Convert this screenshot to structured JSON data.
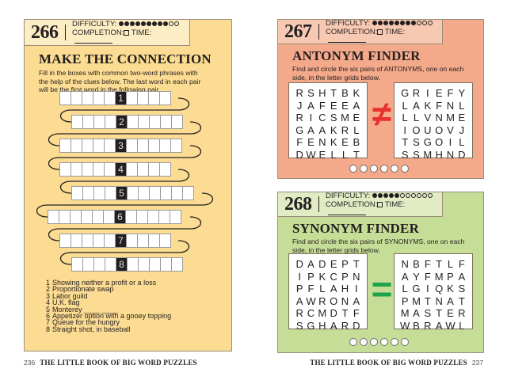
{
  "left_page": {
    "puzzle_number": "266",
    "difficulty_label": "DIFFICULTY:",
    "difficulty": 9,
    "difficulty_max": 11,
    "completion_label": "COMPLETION:",
    "time_label": "TIME:",
    "title": "MAKE THE CONNECTION",
    "instructions": "Fill in the boxes with common two-word phrases with the help of the clues below. The last word in each pair will be the first word in the following pair.",
    "rows": [
      {
        "label": "1",
        "before": 5,
        "after": 4
      },
      {
        "label": "2",
        "before": 4,
        "after": 5
      },
      {
        "label": "3",
        "before": 5,
        "after": 5
      },
      {
        "label": "4",
        "before": 5,
        "after": 4
      },
      {
        "label": "5",
        "before": 4,
        "after": 6
      },
      {
        "label": "6",
        "before": 6,
        "after": 5
      },
      {
        "label": "7",
        "before": 5,
        "after": 4
      },
      {
        "label": "8",
        "before": 4,
        "after": 5
      }
    ],
    "clues": [
      {
        "n": "1",
        "text": "Showing neither a profit or a loss"
      },
      {
        "n": "2",
        "text": "Proportionate swap"
      },
      {
        "n": "3",
        "text": "Labor guild"
      },
      {
        "n": "4",
        "text": "U.K. flag"
      },
      {
        "n": "5",
        "text": "Monterey ____ ____"
      },
      {
        "n": "6",
        "text": "Appetizer option with a gooey topping"
      },
      {
        "n": "7",
        "text": "Queue for the hungry"
      },
      {
        "n": "8",
        "text": "Straight shot, in baseball"
      }
    ],
    "page_number": "236",
    "book_title": "THE LITTLE BOOK OF BIG WORD PUZZLES",
    "color": "#fcdc92"
  },
  "antonym": {
    "puzzle_number": "267",
    "difficulty_label": "DIFFICULTY:",
    "difficulty": 8,
    "difficulty_max": 11,
    "completion_label": "COMPLETION:",
    "time_label": "TIME:",
    "title": "ANTONYM FINDER",
    "instructions": "Find and circle the six pairs of ANTONYMS, one on each side, in the letter grids below.",
    "left_grid": [
      "RSHTBK",
      "JAFEEA",
      "RICSME",
      "GAAKRL",
      "FENKEB",
      "DWELLT"
    ],
    "right_grid": [
      "GRIEFY",
      "LAKFNL",
      "LLVNME",
      "IOUOVJ",
      "TSGOIL",
      "SSMHND"
    ],
    "symbol": "≠",
    "answer_circles": 6,
    "color": "#f4a98a",
    "symbol_color": "#e8312e"
  },
  "synonym": {
    "puzzle_number": "268",
    "difficulty_label": "DIFFICULTY:",
    "difficulty": 5,
    "difficulty_max": 11,
    "completion_label": "COMPLETION:",
    "time_label": "TIME:",
    "title": "SYNONYM FINDER",
    "instructions": "Find and circle the six pairs of SYNONYMS, one on each side, in the letter grids below.",
    "left_grid": [
      "DADEPT",
      "IPKCPN",
      "PFLAHI",
      "AWRONA",
      "RCMDTF",
      "SGHARD"
    ],
    "right_grid": [
      "NBFTLF",
      "AYFMPA",
      "LGIQKS",
      "PMTNAT",
      "MASTER",
      "WBRAWL"
    ],
    "symbol": "=",
    "answer_circles": 6,
    "color": "#c6dd97",
    "symbol_color": "#1fa34a"
  },
  "right_footer": {
    "book_title": "THE LITTLE BOOK OF BIG WORD PUZZLES",
    "page_number": "237"
  }
}
